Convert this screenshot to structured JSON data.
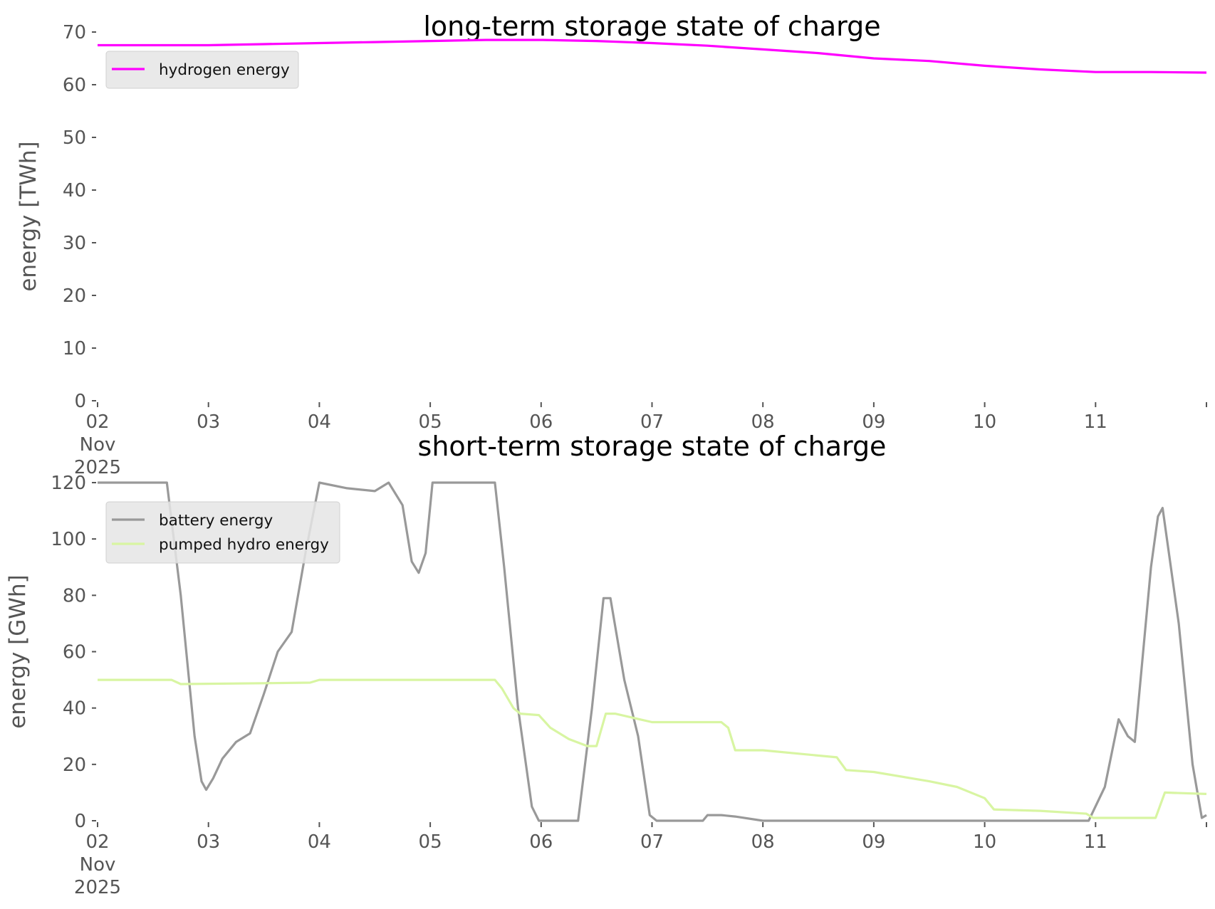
{
  "chart_data": [
    {
      "type": "line",
      "title": "long-term storage state of charge",
      "xlabel": "",
      "ylabel": "energy [TWh]",
      "x_range": [
        "2025-11-02",
        "2025-11-12"
      ],
      "x_tick_labels": [
        "02\nNov\n2025",
        "03",
        "04",
        "05",
        "06",
        "07",
        "08",
        "09",
        "10",
        "11",
        ""
      ],
      "ylim": [
        0,
        70
      ],
      "y_ticks": [
        0,
        10,
        20,
        30,
        40,
        50,
        60,
        70
      ],
      "grid": false,
      "legend_position": "top-left",
      "series": [
        {
          "name": "hydrogen energy",
          "color": "#ff00ff",
          "points": [
            [
              "2025-11-02T00:00",
              67.5
            ],
            [
              "2025-11-02T12:00",
              67.5
            ],
            [
              "2025-11-03T00:00",
              67.5
            ],
            [
              "2025-11-03T12:00",
              67.7
            ],
            [
              "2025-11-04T00:00",
              67.9
            ],
            [
              "2025-11-04T12:00",
              68.1
            ],
            [
              "2025-11-05T00:00",
              68.3
            ],
            [
              "2025-11-05T12:00",
              68.5
            ],
            [
              "2025-11-06T00:00",
              68.5
            ],
            [
              "2025-11-06T12:00",
              68.3
            ],
            [
              "2025-11-07T00:00",
              67.9
            ],
            [
              "2025-11-07T12:00",
              67.4
            ],
            [
              "2025-11-08T00:00",
              66.7
            ],
            [
              "2025-11-08T12:00",
              66.0
            ],
            [
              "2025-11-09T00:00",
              65.0
            ],
            [
              "2025-11-09T12:00",
              64.5
            ],
            [
              "2025-11-10T00:00",
              63.6
            ],
            [
              "2025-11-10T12:00",
              62.9
            ],
            [
              "2025-11-11T00:00",
              62.4
            ],
            [
              "2025-11-11T12:00",
              62.4
            ],
            [
              "2025-11-12T00:00",
              62.3
            ]
          ]
        }
      ]
    },
    {
      "type": "line",
      "title": "short-term storage state of charge",
      "xlabel": "",
      "ylabel": "energy [GWh]",
      "x_range": [
        "2025-11-02",
        "2025-11-12"
      ],
      "x_tick_labels": [
        "02\nNov\n2025",
        "03",
        "04",
        "05",
        "06",
        "07",
        "08",
        "09",
        "10",
        "11",
        ""
      ],
      "ylim": [
        0,
        120
      ],
      "y_ticks": [
        0,
        20,
        40,
        60,
        80,
        100,
        120
      ],
      "grid": false,
      "legend_position": "top-left",
      "series": [
        {
          "name": "battery energy",
          "color": "#999999",
          "points": [
            [
              "2025-11-02T00:00",
              120
            ],
            [
              "2025-11-02T15:00",
              120
            ],
            [
              "2025-11-02T18:00",
              80
            ],
            [
              "2025-11-02T21:00",
              30
            ],
            [
              "2025-11-02T22:30",
              14
            ],
            [
              "2025-11-02T23:30",
              11
            ],
            [
              "2025-11-03T01:00",
              15
            ],
            [
              "2025-11-03T03:00",
              22
            ],
            [
              "2025-11-03T06:00",
              28
            ],
            [
              "2025-11-03T09:00",
              31
            ],
            [
              "2025-11-03T12:00",
              45
            ],
            [
              "2025-11-03T15:00",
              60
            ],
            [
              "2025-11-03T18:00",
              67
            ],
            [
              "2025-11-03T21:00",
              95
            ],
            [
              "2025-11-04T00:00",
              120
            ],
            [
              "2025-11-04T06:00",
              118
            ],
            [
              "2025-11-04T12:00",
              117
            ],
            [
              "2025-11-04T15:00",
              120
            ],
            [
              "2025-11-04T18:00",
              112
            ],
            [
              "2025-11-04T20:00",
              92
            ],
            [
              "2025-11-04T21:30",
              88
            ],
            [
              "2025-11-04T23:00",
              95
            ],
            [
              "2025-11-05T00:30",
              120
            ],
            [
              "2025-11-05T14:00",
              120
            ],
            [
              "2025-11-05T16:00",
              90
            ],
            [
              "2025-11-05T19:00",
              40
            ],
            [
              "2025-11-05T22:00",
              5
            ],
            [
              "2025-11-05T23:30",
              0
            ],
            [
              "2025-11-06T08:00",
              0
            ],
            [
              "2025-11-06T11:00",
              40
            ],
            [
              "2025-11-06T13:30",
              79
            ],
            [
              "2025-11-06T15:00",
              79
            ],
            [
              "2025-11-06T18:00",
              50
            ],
            [
              "2025-11-06T21:00",
              30
            ],
            [
              "2025-11-06T23:30",
              2
            ],
            [
              "2025-11-07T01:00",
              0
            ],
            [
              "2025-11-07T11:00",
              0
            ],
            [
              "2025-11-07T12:00",
              2
            ],
            [
              "2025-11-07T15:00",
              2
            ],
            [
              "2025-11-07T18:00",
              1.5
            ],
            [
              "2025-11-08T00:00",
              0
            ],
            [
              "2025-11-10T22:30",
              0
            ],
            [
              "2025-11-11T02:00",
              12
            ],
            [
              "2025-11-11T05:00",
              36
            ],
            [
              "2025-11-11T07:00",
              30
            ],
            [
              "2025-11-11T08:30",
              28
            ],
            [
              "2025-11-11T12:00",
              90
            ],
            [
              "2025-11-11T13:30",
              108
            ],
            [
              "2025-11-11T14:30",
              111
            ],
            [
              "2025-11-11T18:00",
              70
            ],
            [
              "2025-11-11T21:00",
              20
            ],
            [
              "2025-11-11T23:00",
              1
            ],
            [
              "2025-11-12T00:00",
              2
            ]
          ]
        },
        {
          "name": "pumped hydro energy",
          "color": "#d8f5a2",
          "points": [
            [
              "2025-11-02T00:00",
              50
            ],
            [
              "2025-11-02T16:00",
              50
            ],
            [
              "2025-11-02T18:00",
              48.5
            ],
            [
              "2025-11-03T12:00",
              48.8
            ],
            [
              "2025-11-03T22:00",
              49.0
            ],
            [
              "2025-11-04T00:00",
              50
            ],
            [
              "2025-11-05T14:00",
              50
            ],
            [
              "2025-11-05T15:30",
              47
            ],
            [
              "2025-11-05T18:00",
              40
            ],
            [
              "2025-11-05T19:30",
              38
            ],
            [
              "2025-11-05T23:30",
              37.5
            ],
            [
              "2025-11-06T02:00",
              33
            ],
            [
              "2025-11-06T06:00",
              29
            ],
            [
              "2025-11-06T10:00",
              26.5
            ],
            [
              "2025-11-06T12:00",
              26.5
            ],
            [
              "2025-11-06T14:00",
              38
            ],
            [
              "2025-11-06T16:00",
              38
            ],
            [
              "2025-11-07T00:00",
              35
            ],
            [
              "2025-11-07T15:00",
              35
            ],
            [
              "2025-11-07T16:30",
              33
            ],
            [
              "2025-11-07T18:00",
              25
            ],
            [
              "2025-11-08T00:00",
              25
            ],
            [
              "2025-11-08T16:00",
              22.5
            ],
            [
              "2025-11-08T18:00",
              18
            ],
            [
              "2025-11-09T00:00",
              17.3
            ],
            [
              "2025-11-09T12:00",
              14
            ],
            [
              "2025-11-09T18:00",
              12
            ],
            [
              "2025-11-10T00:00",
              8
            ],
            [
              "2025-11-10T02:00",
              4
            ],
            [
              "2025-11-10T12:00",
              3.5
            ],
            [
              "2025-11-10T22:00",
              2.5
            ],
            [
              "2025-11-10T23:30",
              1
            ],
            [
              "2025-11-11T13:00",
              1
            ],
            [
              "2025-11-11T15:00",
              10
            ],
            [
              "2025-11-12T00:00",
              9.5
            ]
          ]
        }
      ]
    }
  ]
}
